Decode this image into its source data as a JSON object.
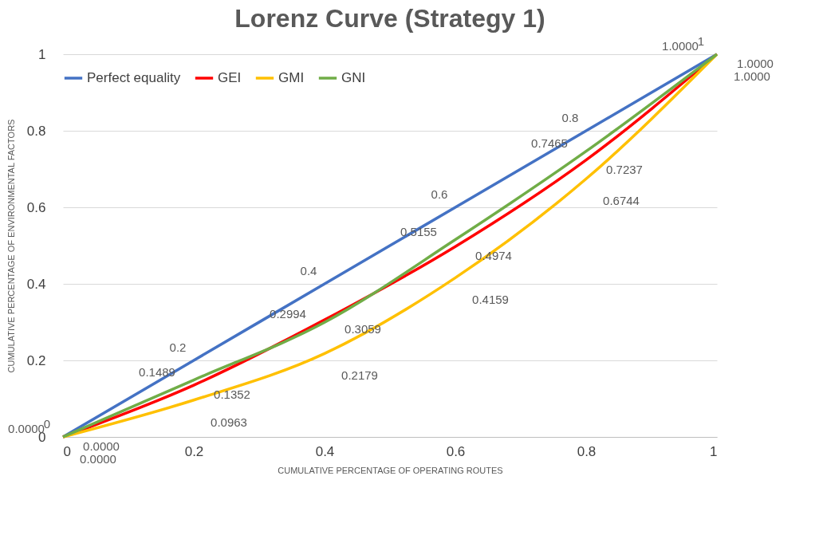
{
  "chart_data": {
    "type": "line",
    "title": "Lorenz Curve (Strategy 1)",
    "xlabel": "CUMULATIVE PERCENTAGE OF OPERATING ROUTES",
    "ylabel": "CUMULATIVE PERCENTAGE OF ENVIRONMENTAL FACTORS",
    "x": [
      0,
      0.2,
      0.4,
      0.6,
      0.8,
      1
    ],
    "series": [
      {
        "name": "Perfect equality",
        "color": "#4472c4",
        "values": [
          0,
          0.2,
          0.4,
          0.6,
          0.8,
          1
        ],
        "value_labels": [
          "0",
          "0.2",
          "0.4",
          "0.6",
          "0.8",
          "1"
        ]
      },
      {
        "name": "GEI",
        "color": "#ff0000",
        "values": [
          0,
          0.1352,
          0.3059,
          0.4974,
          0.7237,
          1
        ],
        "value_labels": [
          "0.0000",
          "0.1352",
          "0.3059",
          "0.4974",
          "0.7237",
          "1.0000"
        ]
      },
      {
        "name": "GMI",
        "color": "#ffc000",
        "values": [
          0,
          0.0963,
          0.2179,
          0.4159,
          0.6744,
          1
        ],
        "value_labels": [
          "0.0000",
          "0.0963",
          "0.2179",
          "0.4159",
          "0.6744",
          "1.0000"
        ]
      },
      {
        "name": "GNI",
        "color": "#70ad47",
        "values": [
          0,
          0.1489,
          0.2994,
          0.5155,
          0.7465,
          1
        ],
        "value_labels": [
          "0.0000",
          "0.1489",
          "0.2994",
          "0.5155",
          "0.7465",
          "1.0000"
        ]
      }
    ],
    "xlim": [
      0,
      1
    ],
    "ylim": [
      0,
      1
    ],
    "xticks": [
      0,
      0.2,
      0.4,
      0.6,
      0.8,
      1
    ],
    "yticks": [
      0,
      0.2,
      0.4,
      0.6,
      0.8,
      1
    ],
    "grid": "y",
    "legend": "top",
    "marker": "none",
    "line_style": "solid"
  }
}
